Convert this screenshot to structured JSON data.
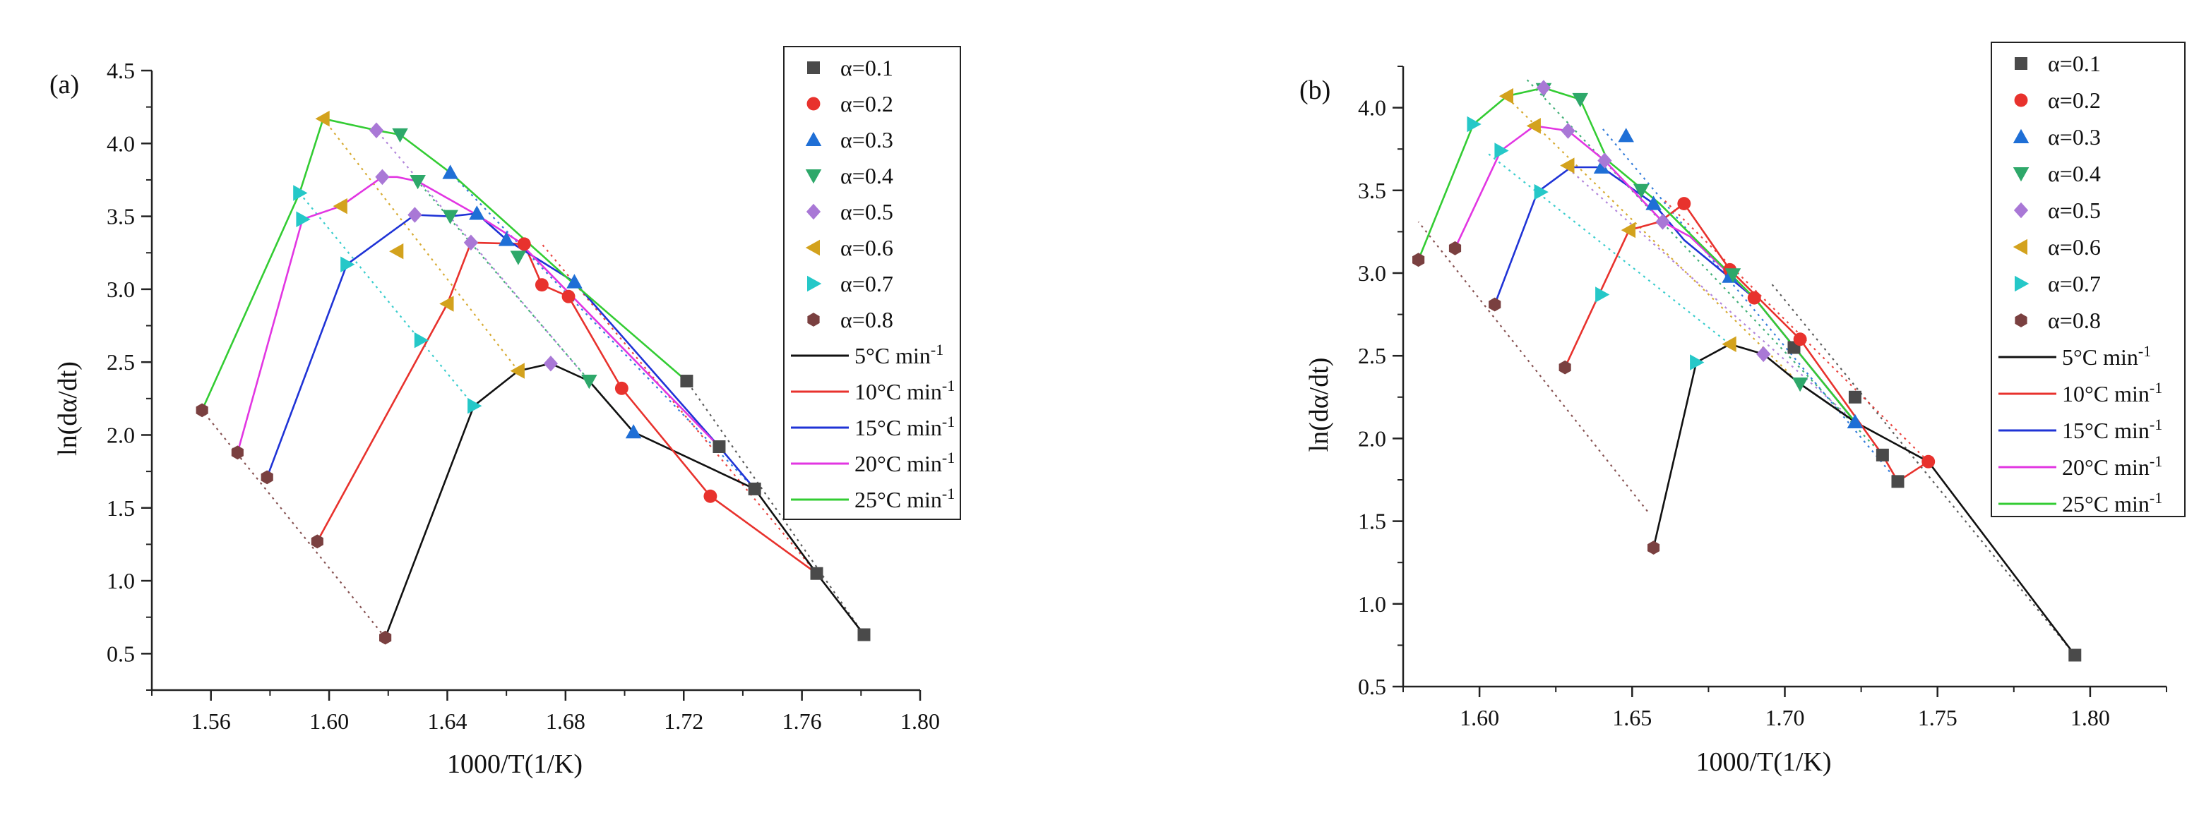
{
  "chart_data": [
    {
      "panel_label": "(a)",
      "type": "line",
      "xlabel": "1000/T(1/K)",
      "ylabel": "ln(dα/dt)",
      "xlim": [
        1.54,
        1.8
      ],
      "ylim": [
        0.25,
        4.5
      ],
      "xticks": [
        1.56,
        1.6,
        1.64,
        1.68,
        1.72,
        1.76,
        1.8
      ],
      "xtick_labels": [
        "1.56",
        "1.60",
        "1.64",
        "1.68",
        "1.72",
        "1.76",
        "1.80"
      ],
      "yticks": [
        0.5,
        1.0,
        1.5,
        2.0,
        2.5,
        3.0,
        3.5,
        4.0,
        4.5
      ],
      "ytick_labels": [
        "0.5",
        "1.0",
        "1.5",
        "2.0",
        "2.5",
        "3.0",
        "3.5",
        "4.0",
        "4.5"
      ],
      "legend_position": "top-right",
      "markers": [
        {
          "name": "α=0.1",
          "shape": "square",
          "color": "#4a4a4a"
        },
        {
          "name": "α=0.2",
          "shape": "circle",
          "color": "#e8322d"
        },
        {
          "name": "α=0.3",
          "shape": "triangle-up",
          "color": "#1f6fd6"
        },
        {
          "name": "α=0.4",
          "shape": "triangle-down",
          "color": "#2ea86a"
        },
        {
          "name": "α=0.5",
          "shape": "diamond",
          "color": "#a978d6"
        },
        {
          "name": "α=0.6",
          "shape": "triangle-left",
          "color": "#d3a21d"
        },
        {
          "name": "α=0.7",
          "shape": "triangle-right",
          "color": "#25c8c8"
        },
        {
          "name": "α=0.8",
          "shape": "hexagon",
          "color": "#7a4040"
        }
      ],
      "series": [
        {
          "name": "5°C min",
          "sup": "-1",
          "color": "#111111",
          "x": [
            1.781,
            1.765,
            1.744,
            1.703,
            1.688,
            1.675,
            1.664,
            1.649,
            1.619
          ],
          "y": [
            0.63,
            1.05,
            1.63,
            2.02,
            2.37,
            2.49,
            2.44,
            2.2,
            0.61
          ]
        },
        {
          "name": "10°C min",
          "sup": "-1",
          "color": "#e8322d",
          "x": [
            1.765,
            1.729,
            1.699,
            1.681,
            1.672,
            1.666,
            1.648,
            1.64,
            1.596
          ],
          "y": [
            1.05,
            1.58,
            2.32,
            2.95,
            3.03,
            3.31,
            3.32,
            2.9,
            1.27
          ]
        },
        {
          "name": "15°C min",
          "sup": "-1",
          "color": "#1f33d6",
          "x": [
            1.744,
            1.732,
            1.683,
            1.66,
            1.65,
            1.641,
            1.629,
            1.606,
            1.579
          ],
          "y": [
            1.63,
            1.92,
            3.05,
            3.34,
            3.52,
            3.5,
            3.51,
            3.17,
            1.71
          ]
        },
        {
          "name": "20°C min",
          "sup": "-1",
          "color": "#e236e2",
          "x": [
            1.732,
            1.664,
            1.65,
            1.63,
            1.623,
            1.618,
            1.604,
            1.591,
            1.569
          ],
          "y": [
            1.92,
            3.33,
            3.51,
            3.74,
            3.77,
            3.77,
            3.57,
            3.48,
            1.88
          ]
        },
        {
          "name": "25°C min",
          "sup": "-1",
          "color": "#33cc33",
          "x": [
            1.721,
            1.681,
            1.641,
            1.624,
            1.616,
            1.598,
            1.59,
            1.557
          ],
          "y": [
            2.37,
            3.07,
            3.8,
            4.06,
            4.09,
            4.17,
            3.66,
            2.17
          ]
        }
      ],
      "iso_lines": [
        {
          "x": [
            1.781,
            1.721
          ],
          "y": [
            0.63,
            2.37
          ]
        },
        {
          "x": [
            1.765,
            1.672
          ],
          "y": [
            1.05,
            3.31
          ]
        },
        {
          "x": [
            1.744,
            1.641
          ],
          "y": [
            1.63,
            3.8
          ]
        },
        {
          "x": [
            1.703,
            1.63
          ],
          "y": [
            2.02,
            3.74
          ]
        },
        {
          "x": [
            1.688,
            1.616
          ],
          "y": [
            2.37,
            4.09
          ]
        },
        {
          "x": [
            1.664,
            1.598
          ],
          "y": [
            2.44,
            4.17
          ]
        },
        {
          "x": [
            1.649,
            1.59
          ],
          "y": [
            2.2,
            3.66
          ]
        },
        {
          "x": [
            1.619,
            1.557
          ],
          "y": [
            0.61,
            2.17
          ]
        }
      ],
      "points": [
        {
          "m": 0,
          "x": 1.781,
          "y": 0.63
        },
        {
          "m": 0,
          "x": 1.765,
          "y": 1.05
        },
        {
          "m": 0,
          "x": 1.744,
          "y": 1.63
        },
        {
          "m": 0,
          "x": 1.732,
          "y": 1.92
        },
        {
          "m": 0,
          "x": 1.721,
          "y": 2.37
        },
        {
          "m": 1,
          "x": 1.729,
          "y": 1.58
        },
        {
          "m": 1,
          "x": 1.699,
          "y": 2.32
        },
        {
          "m": 1,
          "x": 1.681,
          "y": 2.95
        },
        {
          "m": 1,
          "x": 1.672,
          "y": 3.03
        },
        {
          "m": 1,
          "x": 1.666,
          "y": 3.31
        },
        {
          "m": 2,
          "x": 1.703,
          "y": 2.02
        },
        {
          "m": 2,
          "x": 1.683,
          "y": 3.05
        },
        {
          "m": 2,
          "x": 1.66,
          "y": 3.34
        },
        {
          "m": 2,
          "x": 1.65,
          "y": 3.52
        },
        {
          "m": 2,
          "x": 1.641,
          "y": 3.8
        },
        {
          "m": 3,
          "x": 1.688,
          "y": 2.37
        },
        {
          "m": 3,
          "x": 1.664,
          "y": 3.22
        },
        {
          "m": 3,
          "x": 1.641,
          "y": 3.5
        },
        {
          "m": 3,
          "x": 1.63,
          "y": 3.74
        },
        {
          "m": 3,
          "x": 1.624,
          "y": 4.06
        },
        {
          "m": 4,
          "x": 1.675,
          "y": 2.49
        },
        {
          "m": 4,
          "x": 1.648,
          "y": 3.32
        },
        {
          "m": 4,
          "x": 1.629,
          "y": 3.51
        },
        {
          "m": 4,
          "x": 1.618,
          "y": 3.77
        },
        {
          "m": 4,
          "x": 1.616,
          "y": 4.09
        },
        {
          "m": 5,
          "x": 1.664,
          "y": 2.44
        },
        {
          "m": 5,
          "x": 1.64,
          "y": 2.9
        },
        {
          "m": 5,
          "x": 1.623,
          "y": 3.26
        },
        {
          "m": 5,
          "x": 1.604,
          "y": 3.57
        },
        {
          "m": 5,
          "x": 1.598,
          "y": 4.17
        },
        {
          "m": 6,
          "x": 1.649,
          "y": 2.2
        },
        {
          "m": 6,
          "x": 1.631,
          "y": 2.65
        },
        {
          "m": 6,
          "x": 1.606,
          "y": 3.17
        },
        {
          "m": 6,
          "x": 1.591,
          "y": 3.48
        },
        {
          "m": 6,
          "x": 1.59,
          "y": 3.66
        },
        {
          "m": 7,
          "x": 1.619,
          "y": 0.61
        },
        {
          "m": 7,
          "x": 1.596,
          "y": 1.27
        },
        {
          "m": 7,
          "x": 1.579,
          "y": 1.71
        },
        {
          "m": 7,
          "x": 1.569,
          "y": 1.88
        },
        {
          "m": 7,
          "x": 1.557,
          "y": 2.17
        }
      ]
    },
    {
      "panel_label": "(b)",
      "type": "line",
      "xlabel": "1000/T(1/K)",
      "ylabel": "ln(dα/dt)",
      "xlim": [
        1.575,
        1.825
      ],
      "ylim": [
        0.5,
        4.25
      ],
      "xticks": [
        1.6,
        1.65,
        1.7,
        1.75,
        1.8
      ],
      "xtick_labels": [
        "1.60",
        "1.65",
        "1.70",
        "1.75",
        "1.80"
      ],
      "yticks": [
        0.5,
        1.0,
        1.5,
        2.0,
        2.5,
        3.0,
        3.5,
        4.0
      ],
      "ytick_labels": [
        "0.5",
        "1.0",
        "1.5",
        "2.0",
        "2.5",
        "3.0",
        "3.5",
        "4.0"
      ],
      "legend_position": "top-right",
      "markers": [
        {
          "name": "α=0.1",
          "shape": "square",
          "color": "#4a4a4a"
        },
        {
          "name": "α=0.2",
          "shape": "circle",
          "color": "#e8322d"
        },
        {
          "name": "α=0.3",
          "shape": "triangle-up",
          "color": "#1f6fd6"
        },
        {
          "name": "α=0.4",
          "shape": "triangle-down",
          "color": "#2ea86a"
        },
        {
          "name": "α=0.5",
          "shape": "diamond",
          "color": "#a978d6"
        },
        {
          "name": "α=0.6",
          "shape": "triangle-left",
          "color": "#d3a21d"
        },
        {
          "name": "α=0.7",
          "shape": "triangle-right",
          "color": "#25c8c8"
        },
        {
          "name": "α=0.8",
          "shape": "hexagon",
          "color": "#7a4040"
        }
      ],
      "series": [
        {
          "name": "5°C min",
          "sup": "-1",
          "color": "#111111",
          "x": [
            1.795,
            1.747,
            1.723,
            1.705,
            1.693,
            1.682,
            1.671,
            1.657
          ],
          "y": [
            0.69,
            1.86,
            2.1,
            2.33,
            2.51,
            2.57,
            2.46,
            1.34
          ]
        },
        {
          "name": "10°C min",
          "sup": "-1",
          "color": "#e8322d",
          "x": [
            1.747,
            1.737,
            1.732,
            1.705,
            1.682,
            1.667,
            1.659,
            1.649,
            1.628
          ],
          "y": [
            1.86,
            1.74,
            1.9,
            2.6,
            3.02,
            3.42,
            3.31,
            3.26,
            2.43
          ]
        },
        {
          "name": "15°C min",
          "sup": "-1",
          "color": "#1f33d6",
          "x": [
            1.723,
            1.69,
            1.667,
            1.657,
            1.64,
            1.63,
            1.619,
            1.605
          ],
          "y": [
            2.1,
            2.85,
            3.2,
            3.42,
            3.64,
            3.64,
            3.49,
            2.81
          ]
        },
        {
          "name": "20°C min",
          "sup": "-1",
          "color": "#e236e2",
          "x": [
            1.723,
            1.69,
            1.669,
            1.66,
            1.641,
            1.629,
            1.618,
            1.607,
            1.592
          ],
          "y": [
            2.1,
            2.85,
            3.22,
            3.31,
            3.68,
            3.86,
            3.89,
            3.74,
            3.15
          ]
        },
        {
          "name": "25°C min",
          "sup": "-1",
          "color": "#33cc33",
          "x": [
            1.723,
            1.69,
            1.659,
            1.642,
            1.633,
            1.621,
            1.609,
            1.598,
            1.58
          ],
          "y": [
            2.1,
            2.85,
            3.42,
            3.68,
            4.05,
            4.12,
            4.07,
            3.9,
            3.08
          ]
        }
      ],
      "iso_lines": [
        {
          "x": [
            1.795,
            1.695
          ],
          "y": [
            0.69,
            2.95
          ]
        },
        {
          "x": [
            1.747,
            1.66
          ],
          "y": [
            1.86,
            3.45
          ]
        },
        {
          "x": [
            1.737,
            1.64
          ],
          "y": [
            1.74,
            3.88
          ]
        },
        {
          "x": [
            1.732,
            1.615
          ],
          "y": [
            1.9,
            4.18
          ]
        },
        {
          "x": [
            1.723,
            1.628
          ],
          "y": [
            2.1,
            3.65
          ]
        },
        {
          "x": [
            1.705,
            1.608
          ],
          "y": [
            2.33,
            4.08
          ]
        },
        {
          "x": [
            1.682,
            1.603
          ],
          "y": [
            2.57,
            3.72
          ]
        },
        {
          "x": [
            1.655,
            1.58
          ],
          "y": [
            1.56,
            3.31
          ]
        }
      ],
      "points": [
        {
          "m": 0,
          "x": 1.795,
          "y": 0.69
        },
        {
          "m": 0,
          "x": 1.737,
          "y": 1.74
        },
        {
          "m": 0,
          "x": 1.732,
          "y": 1.9
        },
        {
          "m": 0,
          "x": 1.723,
          "y": 2.25
        },
        {
          "m": 0,
          "x": 1.703,
          "y": 2.55
        },
        {
          "m": 1,
          "x": 1.747,
          "y": 1.86
        },
        {
          "m": 1,
          "x": 1.705,
          "y": 2.6
        },
        {
          "m": 1,
          "x": 1.69,
          "y": 2.85
        },
        {
          "m": 1,
          "x": 1.682,
          "y": 3.02
        },
        {
          "m": 1,
          "x": 1.667,
          "y": 3.42
        },
        {
          "m": 2,
          "x": 1.723,
          "y": 2.1
        },
        {
          "m": 2,
          "x": 1.682,
          "y": 2.98
        },
        {
          "m": 2,
          "x": 1.657,
          "y": 3.42
        },
        {
          "m": 2,
          "x": 1.64,
          "y": 3.64
        },
        {
          "m": 2,
          "x": 1.648,
          "y": 3.83
        },
        {
          "m": 3,
          "x": 1.705,
          "y": 2.33
        },
        {
          "m": 3,
          "x": 1.683,
          "y": 2.99
        },
        {
          "m": 3,
          "x": 1.653,
          "y": 3.5
        },
        {
          "m": 3,
          "x": 1.633,
          "y": 4.05
        },
        {
          "m": 3,
          "x": 1.621,
          "y": 4.11
        },
        {
          "m": 4,
          "x": 1.693,
          "y": 2.51
        },
        {
          "m": 4,
          "x": 1.66,
          "y": 3.31
        },
        {
          "m": 4,
          "x": 1.641,
          "y": 3.68
        },
        {
          "m": 4,
          "x": 1.629,
          "y": 3.86
        },
        {
          "m": 4,
          "x": 1.621,
          "y": 4.12
        },
        {
          "m": 5,
          "x": 1.682,
          "y": 2.57
        },
        {
          "m": 5,
          "x": 1.649,
          "y": 3.26
        },
        {
          "m": 5,
          "x": 1.629,
          "y": 3.65
        },
        {
          "m": 5,
          "x": 1.618,
          "y": 3.89
        },
        {
          "m": 5,
          "x": 1.609,
          "y": 4.07
        },
        {
          "m": 6,
          "x": 1.671,
          "y": 2.46
        },
        {
          "m": 6,
          "x": 1.64,
          "y": 2.87
        },
        {
          "m": 6,
          "x": 1.62,
          "y": 3.49
        },
        {
          "m": 6,
          "x": 1.607,
          "y": 3.74
        },
        {
          "m": 6,
          "x": 1.598,
          "y": 3.9
        },
        {
          "m": 7,
          "x": 1.657,
          "y": 1.34
        },
        {
          "m": 7,
          "x": 1.628,
          "y": 2.43
        },
        {
          "m": 7,
          "x": 1.605,
          "y": 2.81
        },
        {
          "m": 7,
          "x": 1.592,
          "y": 3.15
        },
        {
          "m": 7,
          "x": 1.58,
          "y": 3.08
        }
      ]
    }
  ]
}
